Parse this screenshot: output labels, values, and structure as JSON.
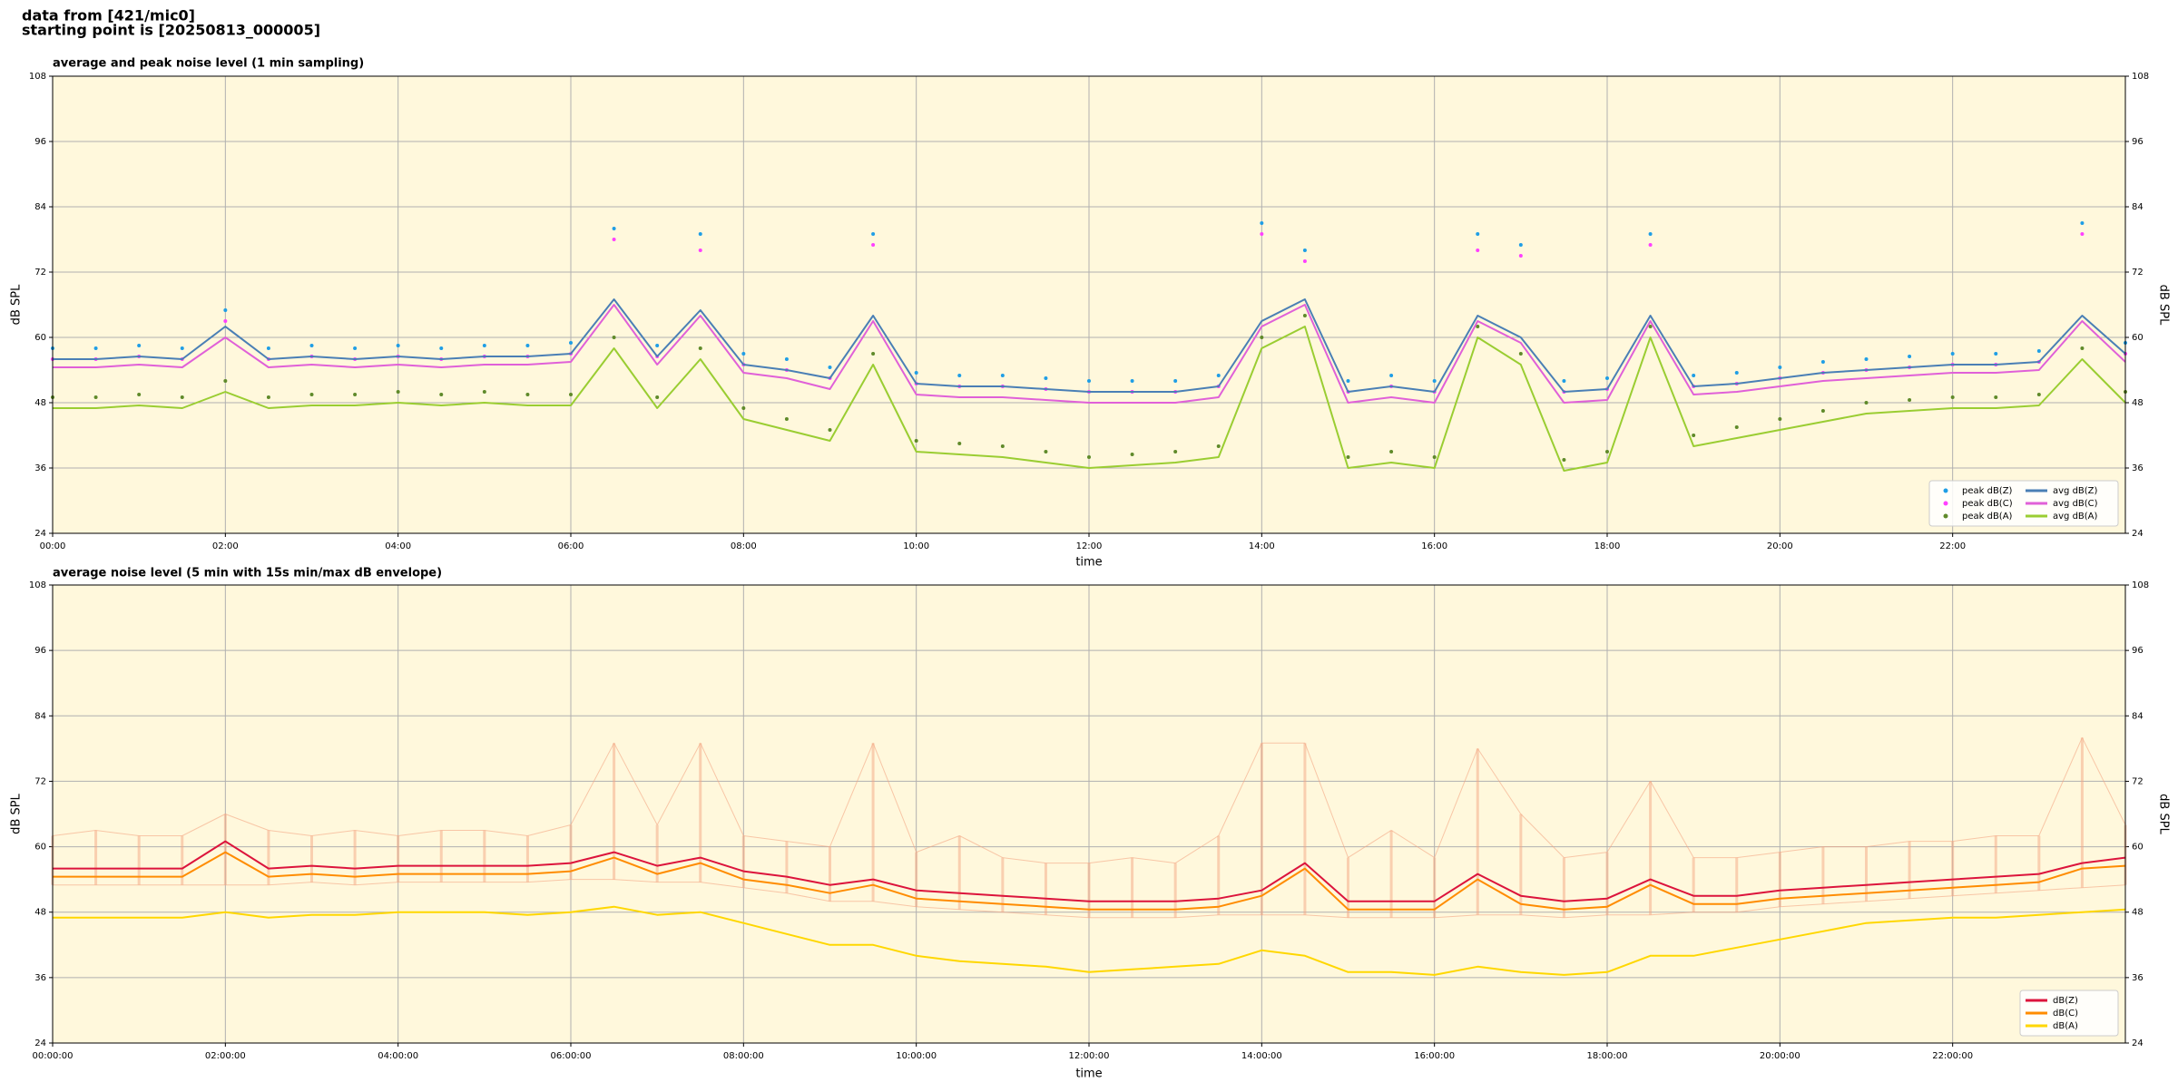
{
  "header": [
    "data from [421/mic0]",
    "starting point is [20250813_000005]"
  ],
  "chart_data": [
    {
      "type": "line",
      "title": "average and peak noise level (1 min sampling)",
      "xlabel": "time",
      "ylabel": "dB SPL",
      "background": "#fff8dc",
      "grid": true,
      "legend": "lower right",
      "legend_columns": 2,
      "x": [
        0,
        0.5,
        1,
        1.5,
        2,
        2.5,
        3,
        3.5,
        4,
        4.5,
        5,
        5.5,
        6,
        6.5,
        7,
        7.5,
        8,
        8.5,
        9,
        9.5,
        10,
        10.5,
        11,
        11.5,
        12,
        12.5,
        13,
        13.5,
        14,
        14.5,
        15,
        15.5,
        16,
        16.5,
        17,
        17.5,
        18,
        18.5,
        19,
        19.5,
        20,
        20.5,
        21,
        21.5,
        22,
        22.5,
        23,
        23.5,
        24
      ],
      "xlim": [
        0,
        24
      ],
      "xticks": [
        {
          "value": 0,
          "label": "00:00"
        },
        {
          "value": 2,
          "label": "02:00"
        },
        {
          "value": 4,
          "label": "04:00"
        },
        {
          "value": 6,
          "label": "06:00"
        },
        {
          "value": 8,
          "label": "08:00"
        },
        {
          "value": 10,
          "label": "10:00"
        },
        {
          "value": 12,
          "label": "12:00"
        },
        {
          "value": 14,
          "label": "14:00"
        },
        {
          "value": 16,
          "label": "16:00"
        },
        {
          "value": 18,
          "label": "18:00"
        },
        {
          "value": 20,
          "label": "20:00"
        },
        {
          "value": 22,
          "label": "22:00"
        }
      ],
      "ylim": [
        24,
        108
      ],
      "yticks": [
        24,
        36,
        48,
        60,
        72,
        84,
        96,
        108
      ],
      "series": [
        {
          "name": "peak dB(Z)",
          "kind": "points",
          "color": "#1f9ee6",
          "values": [
            58,
            58,
            58.5,
            58,
            65,
            58,
            58.5,
            58,
            58.5,
            58,
            58.5,
            58.5,
            59,
            80,
            58.5,
            79,
            57,
            56,
            54.5,
            79,
            53.5,
            53,
            53,
            52.5,
            52,
            52,
            52,
            53,
            81,
            76,
            52,
            53,
            52,
            79,
            77,
            52,
            52.5,
            79,
            53,
            53.5,
            54.5,
            55.5,
            56,
            56.5,
            57,
            57,
            57.5,
            81,
            59
          ]
        },
        {
          "name": "peak dB(C)",
          "kind": "points",
          "color": "#ff40ff",
          "values": [
            56,
            56,
            56.5,
            56,
            63,
            56,
            56.5,
            56,
            56.5,
            56,
            56.5,
            56.5,
            57,
            78,
            56.5,
            76,
            55,
            54,
            52.5,
            77,
            51.5,
            51,
            51,
            50.5,
            50,
            50,
            50,
            51,
            79,
            74,
            50,
            51,
            50,
            76,
            75,
            50,
            50.5,
            77,
            51,
            51.5,
            52.5,
            53.5,
            54,
            54.5,
            55,
            55,
            55.5,
            79,
            57
          ]
        },
        {
          "name": "peak dB(A)",
          "kind": "points",
          "color": "#5f8a2a",
          "values": [
            49,
            49,
            49.5,
            49,
            52,
            49,
            49.5,
            49.5,
            50,
            49.5,
            50,
            49.5,
            49.5,
            60,
            49,
            58,
            47,
            45,
            43,
            57,
            41,
            40.5,
            40,
            39,
            38,
            38.5,
            39,
            40,
            60,
            64,
            38,
            39,
            38,
            62,
            57,
            37.5,
            39,
            62,
            42,
            43.5,
            45,
            46.5,
            48,
            48.5,
            49,
            49,
            49.5,
            58,
            50
          ]
        },
        {
          "name": "avg dB(Z)",
          "kind": "line",
          "color": "#4a7fb5",
          "values": [
            56,
            56,
            56.5,
            56,
            62,
            56,
            56.5,
            56,
            56.5,
            56,
            56.5,
            56.5,
            57,
            67,
            56.5,
            65,
            55,
            54,
            52.5,
            64,
            51.5,
            51,
            51,
            50.5,
            50,
            50,
            50,
            51,
            63,
            67,
            50,
            51,
            50,
            64,
            60,
            50,
            50.5,
            64,
            51,
            51.5,
            52.5,
            53.5,
            54,
            54.5,
            55,
            55,
            55.5,
            64,
            57
          ]
        },
        {
          "name": "avg dB(C)",
          "kind": "line",
          "color": "#e060d8",
          "values": [
            54.5,
            54.5,
            55,
            54.5,
            60,
            54.5,
            55,
            54.5,
            55,
            54.5,
            55,
            55,
            55.5,
            66,
            55,
            64,
            53.5,
            52.5,
            50.5,
            63,
            49.5,
            49,
            49,
            48.5,
            48,
            48,
            48,
            49,
            62,
            66,
            48,
            49,
            48,
            63,
            59,
            48,
            48.5,
            63,
            49.5,
            50,
            51,
            52,
            52.5,
            53,
            53.5,
            53.5,
            54,
            63,
            55.5
          ]
        },
        {
          "name": "avg dB(A)",
          "kind": "line",
          "color": "#9acd32",
          "values": [
            47,
            47,
            47.5,
            47,
            50,
            47,
            47.5,
            47.5,
            48,
            47.5,
            48,
            47.5,
            47.5,
            58,
            47,
            56,
            45,
            43,
            41,
            55,
            39,
            38.5,
            38,
            37,
            36,
            36.5,
            37,
            38,
            58,
            62,
            36,
            37,
            36,
            60,
            55,
            35.5,
            37,
            60,
            40,
            41.5,
            43,
            44.5,
            46,
            46.5,
            47,
            47,
            47.5,
            56,
            48
          ]
        }
      ]
    },
    {
      "type": "line",
      "title": "average noise level (5 min with 15s min/max dB envelope)",
      "xlabel": "time",
      "ylabel": "dB SPL",
      "background": "#fff8dc",
      "grid": true,
      "legend": "lower right",
      "legend_columns": 1,
      "x": [
        0,
        0.5,
        1,
        1.5,
        2,
        2.5,
        3,
        3.5,
        4,
        4.5,
        5,
        5.5,
        6,
        6.5,
        7,
        7.5,
        8,
        8.5,
        9,
        9.5,
        10,
        10.5,
        11,
        11.5,
        12,
        12.5,
        13,
        13.5,
        14,
        14.5,
        15,
        15.5,
        16,
        16.5,
        17,
        17.5,
        18,
        18.5,
        19,
        19.5,
        20,
        20.5,
        21,
        21.5,
        22,
        22.5,
        23,
        23.5,
        24
      ],
      "xlim": [
        0,
        24
      ],
      "xticks": [
        {
          "value": 0,
          "label": "00:00:00"
        },
        {
          "value": 2,
          "label": "02:00:00"
        },
        {
          "value": 4,
          "label": "04:00:00"
        },
        {
          "value": 6,
          "label": "06:00:00"
        },
        {
          "value": 8,
          "label": "08:00:00"
        },
        {
          "value": 10,
          "label": "10:00:00"
        },
        {
          "value": 12,
          "label": "12:00:00"
        },
        {
          "value": 14,
          "label": "14:00:00"
        },
        {
          "value": 16,
          "label": "16:00:00"
        },
        {
          "value": 18,
          "label": "18:00:00"
        },
        {
          "value": 20,
          "label": "20:00:00"
        },
        {
          "value": 22,
          "label": "22:00:00"
        }
      ],
      "ylim": [
        24,
        108
      ],
      "yticks": [
        24,
        36,
        48,
        60,
        72,
        84,
        96,
        108
      ],
      "envelope": {
        "color": "#f4a582",
        "low": [
          53,
          53,
          53,
          53,
          53,
          53,
          53.5,
          53,
          53.5,
          53.5,
          53.5,
          53.5,
          54,
          54,
          53.5,
          53.5,
          52.5,
          51.5,
          50,
          50,
          49,
          48.5,
          48,
          47.5,
          47,
          47,
          47,
          47.5,
          47.5,
          47.5,
          47,
          47,
          47,
          47.5,
          47.5,
          47,
          47.5,
          47.5,
          48,
          48,
          49,
          49.5,
          50,
          50.5,
          51,
          51.5,
          52,
          52.5,
          53
        ],
        "high": [
          62,
          63,
          62,
          62,
          66,
          63,
          62,
          63,
          62,
          63,
          63,
          62,
          64,
          79,
          64,
          79,
          62,
          61,
          60,
          79,
          59,
          62,
          58,
          57,
          57,
          58,
          57,
          62,
          79,
          79,
          58,
          63,
          58,
          78,
          66,
          58,
          59,
          72,
          58,
          58,
          59,
          60,
          60,
          61,
          61,
          62,
          62,
          80,
          64
        ]
      },
      "series": [
        {
          "name": "dB(Z)",
          "kind": "line",
          "color": "#dc143c",
          "values": [
            56,
            56,
            56,
            56,
            61,
            56,
            56.5,
            56,
            56.5,
            56.5,
            56.5,
            56.5,
            57,
            59,
            56.5,
            58,
            55.5,
            54.5,
            53,
            54,
            52,
            51.5,
            51,
            50.5,
            50,
            50,
            50,
            50.5,
            52,
            57,
            50,
            50,
            50,
            55,
            51,
            50,
            50.5,
            54,
            51,
            51,
            52,
            52.5,
            53,
            53.5,
            54,
            54.5,
            55,
            57,
            58
          ]
        },
        {
          "name": "dB(C)",
          "kind": "line",
          "color": "#ff8c00",
          "values": [
            54.5,
            54.5,
            54.5,
            54.5,
            59,
            54.5,
            55,
            54.5,
            55,
            55,
            55,
            55,
            55.5,
            58,
            55,
            57,
            54,
            53,
            51.5,
            53,
            50.5,
            50,
            49.5,
            49,
            48.5,
            48.5,
            48.5,
            49,
            51,
            56,
            48.5,
            48.5,
            48.5,
            54,
            49.5,
            48.5,
            49,
            53,
            49.5,
            49.5,
            50.5,
            51,
            51.5,
            52,
            52.5,
            53,
            53.5,
            56,
            56.5
          ]
        },
        {
          "name": "dB(A)",
          "kind": "line",
          "color": "#ffd700",
          "values": [
            47,
            47,
            47,
            47,
            48,
            47,
            47.5,
            47.5,
            48,
            48,
            48,
            47.5,
            48,
            49,
            47.5,
            48,
            46,
            44,
            42,
            42,
            40,
            39,
            38.5,
            38,
            37,
            37.5,
            38,
            38.5,
            41,
            40,
            37,
            37,
            36.5,
            38,
            37,
            36.5,
            37,
            40,
            40,
            41.5,
            43,
            44.5,
            46,
            46.5,
            47,
            47,
            47.5,
            48,
            48.5
          ]
        }
      ]
    }
  ]
}
